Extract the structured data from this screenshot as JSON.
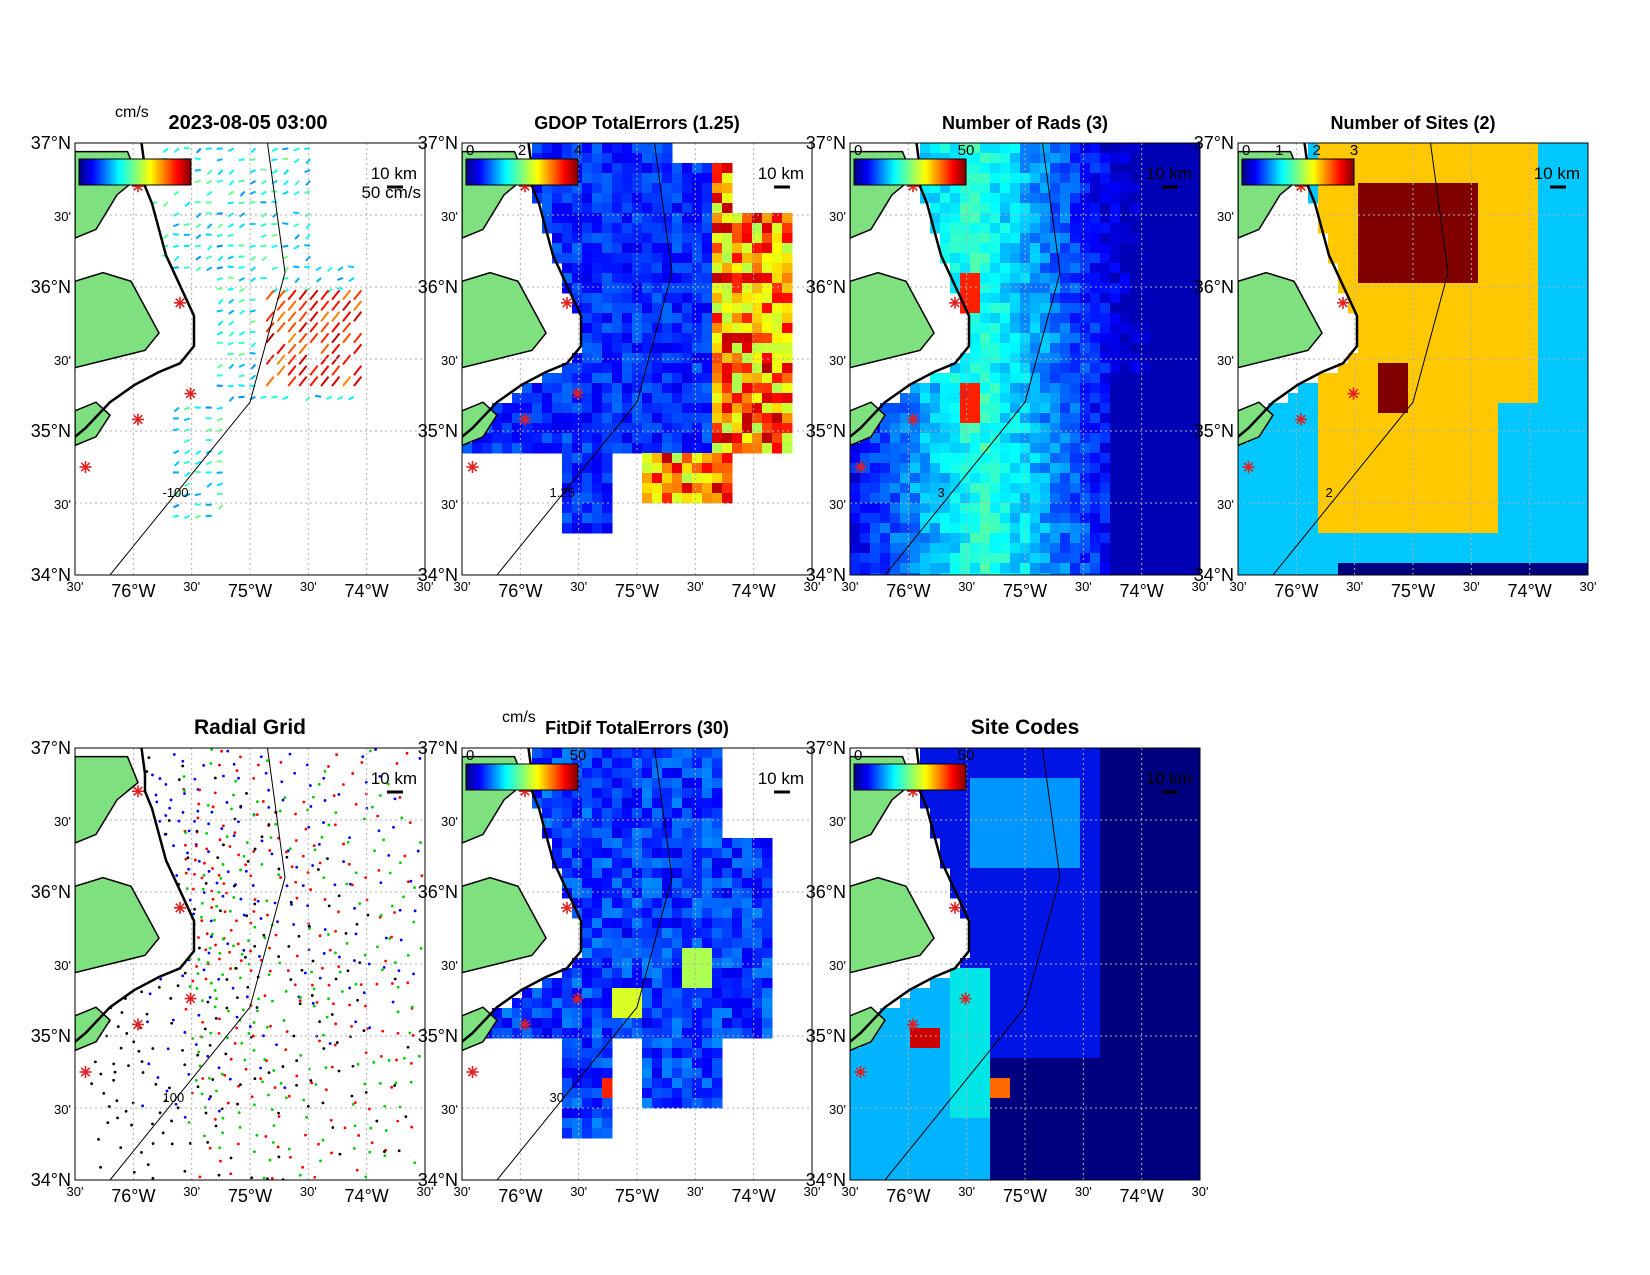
{
  "figure": {
    "timestamp": "2023-08-05 03:00",
    "lat_ticks": [
      "37°N",
      "30'",
      "36°N",
      "30'",
      "35°N",
      "30'",
      "34°N"
    ],
    "lon_ticks": [
      "30'",
      "76°W",
      "30'",
      "75°W",
      "30'",
      "74°W",
      "30'"
    ],
    "scale_label": "10 km",
    "colors": {
      "land": "#7fe07f",
      "ocean": "#ffffff",
      "grid_line": "#b0b0b0",
      "site_marker": "#e02020",
      "deep_blue": "#00007f",
      "jet_low": "#0000ff",
      "jet_high": "#ff0000"
    }
  },
  "panels": [
    {
      "id": "currents",
      "title": "",
      "colorbar_unit": "cm/s",
      "colorbar_ticks": [],
      "vector_label": "50 cm/s",
      "contour_label": "-100"
    },
    {
      "id": "gdop",
      "title": "GDOP TotalErrors (1.25)",
      "colorbar_unit": "",
      "colorbar_ticks": [
        "0",
        "2",
        "4"
      ],
      "contour_label": "1.25"
    },
    {
      "id": "nrads",
      "title": "Number of Rads (3)",
      "colorbar_unit": "",
      "colorbar_ticks": [
        "0",
        "50"
      ],
      "contour_label": "3"
    },
    {
      "id": "nsites",
      "title": "Number of Sites (2)",
      "colorbar_unit": "",
      "colorbar_ticks": [
        "0",
        "1",
        "2",
        "3"
      ],
      "contour_label": "2"
    },
    {
      "id": "radgrid",
      "title": "Radial Grid",
      "colorbar_unit": "",
      "colorbar_ticks": [],
      "contour_label": "100"
    },
    {
      "id": "fitdif",
      "title": "FitDif TotalErrors (30)",
      "colorbar_unit": "cm/s",
      "colorbar_ticks": [
        "0",
        "50"
      ],
      "contour_label": "30"
    },
    {
      "id": "sitecodes",
      "title": "Site Codes",
      "colorbar_unit": "",
      "colorbar_ticks": [
        "0",
        "50"
      ],
      "contour_label": ""
    }
  ],
  "legend": {
    "site_marker_icon": "asterisk-icon",
    "sites": 5
  }
}
